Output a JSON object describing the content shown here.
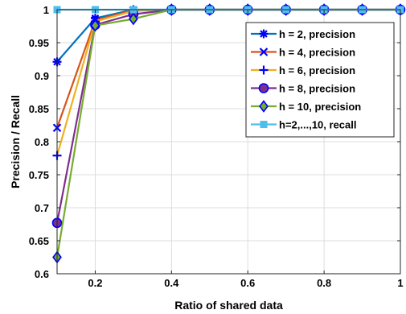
{
  "chart_data": {
    "type": "line",
    "xlabel": "Ratio of shared data",
    "ylabel": "Precision / Recall",
    "xlim": [
      0.1,
      1.0
    ],
    "ylim": [
      0.6,
      1.0
    ],
    "xticks": [
      0.2,
      0.4,
      0.6,
      0.8,
      1.0
    ],
    "xtick_labels": [
      "0.2",
      "0.4",
      "0.6",
      "0.8",
      "1"
    ],
    "yticks": [
      0.6,
      0.65,
      0.7,
      0.75,
      0.8,
      0.85,
      0.9,
      0.95,
      1.0
    ],
    "ytick_labels": [
      "0.6",
      "0.65",
      "0.7",
      "0.75",
      "0.8",
      "0.85",
      "0.9",
      "0.95",
      "1"
    ],
    "grid": true,
    "legend_position": "top-right",
    "x": [
      0.1,
      0.2,
      0.3,
      0.4,
      0.5,
      0.6,
      0.7,
      0.8,
      0.9,
      1.0
    ],
    "series": [
      {
        "name": "h = 2, precision",
        "color": "#0072BD",
        "marker": "asterisk",
        "values": [
          0.921,
          0.987,
          1.0,
          1.0,
          1.0,
          1.0,
          1.0,
          1.0,
          1.0,
          1.0
        ]
      },
      {
        "name": "h = 4, precision",
        "color": "#D95319",
        "marker": "x",
        "values": [
          0.821,
          0.984,
          0.999,
          1.0,
          1.0,
          1.0,
          1.0,
          1.0,
          1.0,
          1.0
        ]
      },
      {
        "name": "h = 6, precision",
        "color": "#EDB120",
        "marker": "plus",
        "values": [
          0.779,
          0.982,
          0.998,
          1.0,
          1.0,
          1.0,
          1.0,
          1.0,
          1.0,
          1.0
        ]
      },
      {
        "name": "h = 8, precision",
        "color": "#7E2F8E",
        "marker": "circle",
        "values": [
          0.677,
          0.977,
          0.993,
          1.0,
          1.0,
          1.0,
          1.0,
          1.0,
          1.0,
          1.0
        ]
      },
      {
        "name": "h = 10, precision",
        "color": "#77AC30",
        "marker": "diamond",
        "values": [
          0.625,
          0.976,
          0.986,
          1.0,
          1.0,
          1.0,
          1.0,
          1.0,
          1.0,
          1.0
        ]
      },
      {
        "name": "h=2,...,10, recall",
        "color": "#4DBEEE",
        "marker": "square",
        "values": [
          1.0,
          1.0,
          1.0,
          1.0,
          1.0,
          1.0,
          1.0,
          1.0,
          1.0,
          1.0
        ]
      }
    ]
  },
  "marker_color": "#0000FF"
}
